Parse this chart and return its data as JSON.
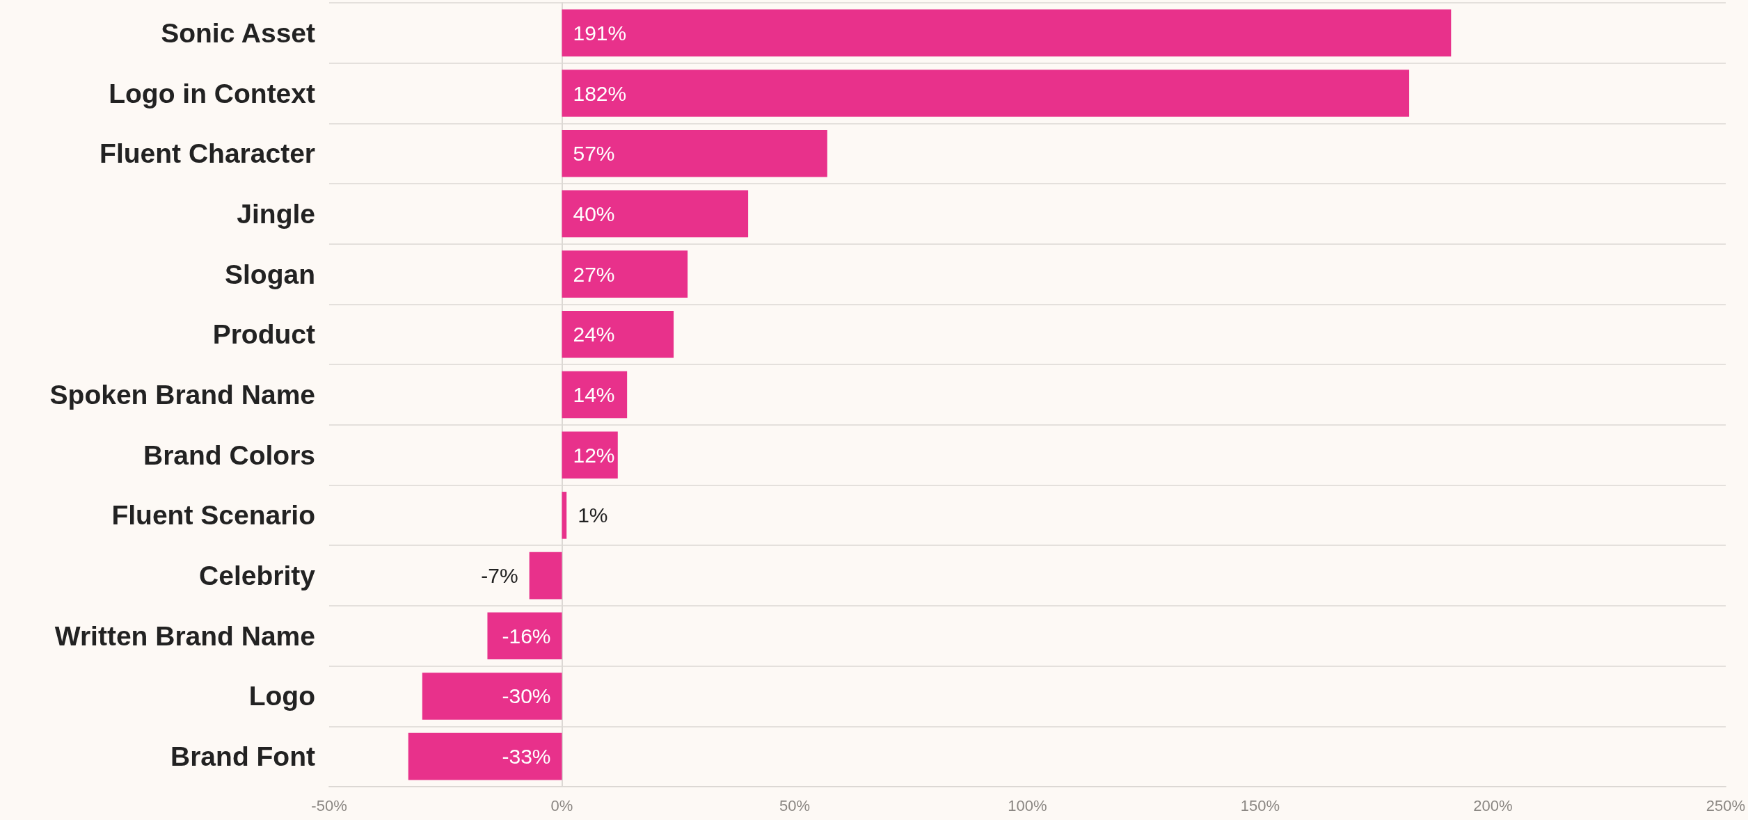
{
  "chart_data": {
    "type": "bar",
    "orientation": "horizontal",
    "categories": [
      "Sonic Asset",
      "Logo in Context",
      "Fluent Character",
      "Jingle",
      "Slogan",
      "Product",
      "Spoken Brand Name",
      "Brand Colors",
      "Fluent Scenario",
      "Celebrity",
      "Written Brand Name",
      "Logo",
      "Brand Font"
    ],
    "values": [
      191,
      182,
      57,
      40,
      27,
      24,
      14,
      12,
      1,
      -7,
      -16,
      -30,
      -33
    ],
    "value_labels": [
      "191%",
      "182%",
      "57%",
      "40%",
      "27%",
      "24%",
      "14%",
      "12%",
      "1%",
      "-7%",
      "-16%",
      "-30%",
      "-33%"
    ],
    "color": "#e8318b",
    "xlim": [
      -50,
      250
    ],
    "xticks": [
      {
        "value": -50,
        "label": "-50%"
      },
      {
        "value": 0,
        "label": "0%"
      },
      {
        "value": 50,
        "label": "50%"
      },
      {
        "value": 100,
        "label": "100%"
      },
      {
        "value": 150,
        "label": "150%"
      },
      {
        "value": 200,
        "label": "200%"
      },
      {
        "value": 250,
        "label": "250%"
      }
    ],
    "grid": "y"
  }
}
